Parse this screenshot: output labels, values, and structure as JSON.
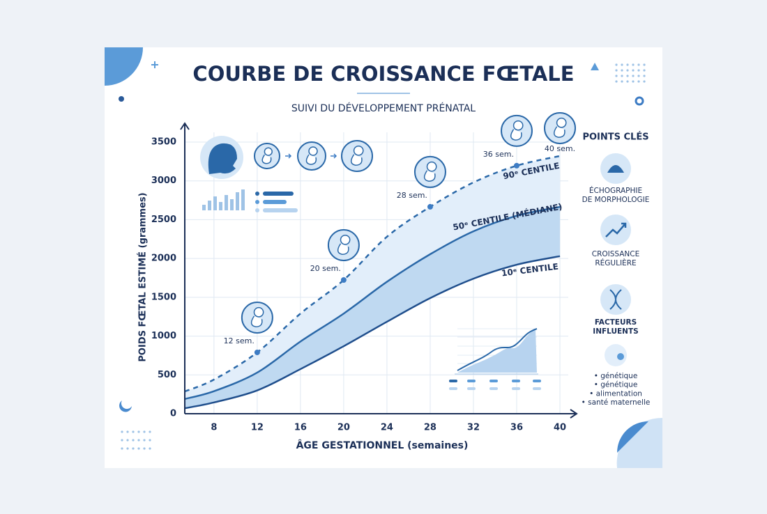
{
  "chart_data": {
    "type": "line",
    "title": "COURBE DE CROISSANCE FŒTALE",
    "subtitle": "SUIVI DU DÉVELOPPEMENT PRÉNATAL",
    "xlabel": "ÂGE GESTATIONNEL (semaines)",
    "ylabel": "POIDS FŒTAL ESTIMÉ (grammes)",
    "x": [
      5.3,
      8,
      12,
      16,
      20,
      24,
      28,
      32,
      36,
      40
    ],
    "xlim": [
      5.3,
      40
    ],
    "xticks": [
      8,
      12,
      16,
      20,
      24,
      28,
      32,
      36,
      40
    ],
    "ylim": [
      0,
      3500
    ],
    "yticks": [
      0,
      500,
      1000,
      1500,
      2000,
      2500,
      3000,
      3500
    ],
    "grid": true,
    "series": [
      {
        "name": "10ᵉ CENTILE",
        "color": "#1f4e8c",
        "style": "solid",
        "values": [
          70,
          145,
          300,
          575,
          870,
          1185,
          1490,
          1740,
          1920,
          2030
        ]
      },
      {
        "name": "50ᵉ CENTILE (MÉDIANE)",
        "color": "#2a68a8",
        "style": "solid",
        "values": [
          190,
          290,
          530,
          930,
          1290,
          1700,
          2055,
          2350,
          2550,
          2665
        ]
      },
      {
        "name": "90ᵉ CENTILE",
        "color": "#2a68a8",
        "style": "dashed",
        "values": [
          287,
          440,
          790,
          1290,
          1723,
          2280,
          2666,
          2980,
          3196,
          3321
        ]
      }
    ],
    "milestones": [
      {
        "x": 12,
        "label": "12 sem."
      },
      {
        "x": 20,
        "label": "20 sem."
      },
      {
        "x": 28,
        "label": "28 sem."
      },
      {
        "x": 36,
        "label": "36 sem."
      },
      {
        "x": 40,
        "label": "40 sem."
      }
    ],
    "side_panel": {
      "title": "POINTS CLÉS",
      "items": [
        {
          "lines": [
            "ÉCHOGRAPHIE",
            "DE MORPHOLOGIE"
          ]
        },
        {
          "lines": [
            "CROISSANCE",
            "RÉGULIÈRE"
          ]
        },
        {
          "lines": [
            "FACTEURS",
            "INFLUENTS"
          ]
        }
      ],
      "bullets": [
        "• génétique",
        "• génétique",
        "• alimentation",
        "• santé maternelle"
      ]
    }
  }
}
